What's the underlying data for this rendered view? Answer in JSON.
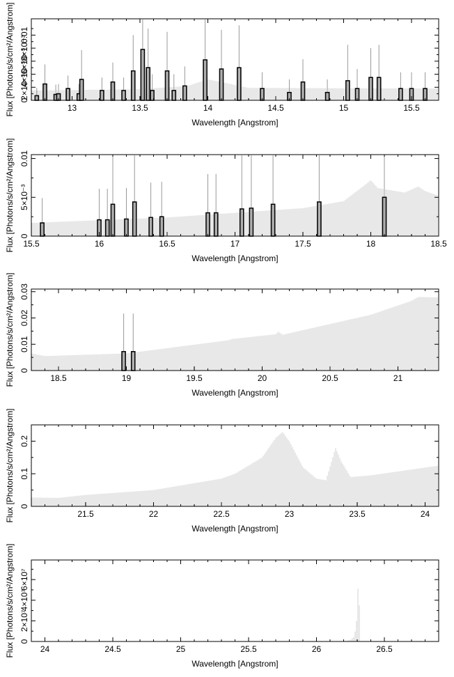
{
  "chart_data": [
    {
      "type": "bar",
      "xlabel": "Wavelength [Angstrom]",
      "ylabel": "Flux [Photons/s/cm²/Angstrom]",
      "xlim": [
        12.7,
        15.7
      ],
      "ylim": [
        0,
        0.0125
      ],
      "xticks": [
        13,
        13.5,
        14,
        14.5,
        15,
        15.5
      ],
      "yticks": [
        {
          "v": 0,
          "label": "0"
        },
        {
          "v": 0.002,
          "label": "2×10⁻³"
        },
        {
          "v": 0.004,
          "label": "4×10⁻³"
        },
        {
          "v": 0.006,
          "label": "6×10⁻³"
        },
        {
          "v": 0.008,
          "label": "8×10⁻³"
        },
        {
          "v": 0.01,
          "label": "0.01"
        }
      ],
      "continuum": [
        [
          12.7,
          0.0015
        ],
        [
          13.5,
          0.0017
        ],
        [
          13.85,
          0.0022
        ],
        [
          14.0,
          0.0032
        ],
        [
          14.1,
          0.0028
        ],
        [
          14.3,
          0.0019
        ],
        [
          15.7,
          0.0018
        ]
      ],
      "bins": [
        {
          "x": 12.74,
          "y": 0.0007,
          "err": 0.0012
        },
        {
          "x": 12.8,
          "y": 0.0025,
          "err": 0.003
        },
        {
          "x": 12.88,
          "y": 0.0009,
          "err": 0.0015
        },
        {
          "x": 12.9,
          "y": 0.001,
          "err": 0.0015
        },
        {
          "x": 12.97,
          "y": 0.0018,
          "err": 0.002
        },
        {
          "x": 13.05,
          "y": 0.001,
          "err": 0.0015
        },
        {
          "x": 13.07,
          "y": 0.0032,
          "err": 0.0045
        },
        {
          "x": 13.22,
          "y": 0.0015,
          "err": 0.002
        },
        {
          "x": 13.3,
          "y": 0.0028,
          "err": 0.003
        },
        {
          "x": 13.38,
          "y": 0.0015,
          "err": 0.002
        },
        {
          "x": 13.45,
          "y": 0.0045,
          "err": 0.0055
        },
        {
          "x": 13.52,
          "y": 0.0078,
          "err": 0.009
        },
        {
          "x": 13.56,
          "y": 0.005,
          "err": 0.006
        },
        {
          "x": 13.59,
          "y": 0.0015,
          "err": 0.0025
        },
        {
          "x": 13.7,
          "y": 0.0045,
          "err": 0.006
        },
        {
          "x": 13.75,
          "y": 0.0015,
          "err": 0.0025
        },
        {
          "x": 13.83,
          "y": 0.0022,
          "err": 0.003
        },
        {
          "x": 13.98,
          "y": 0.0062,
          "err": 0.01
        },
        {
          "x": 14.1,
          "y": 0.0048,
          "err": 0.006
        },
        {
          "x": 14.23,
          "y": 0.005,
          "err": 0.0065
        },
        {
          "x": 14.4,
          "y": 0.0018,
          "err": 0.0025
        },
        {
          "x": 14.6,
          "y": 0.0012,
          "err": 0.002
        },
        {
          "x": 14.7,
          "y": 0.0028,
          "err": 0.0035
        },
        {
          "x": 14.88,
          "y": 0.0012,
          "err": 0.002
        },
        {
          "x": 15.03,
          "y": 0.003,
          "err": 0.0055
        },
        {
          "x": 15.1,
          "y": 0.0018,
          "err": 0.003
        },
        {
          "x": 15.2,
          "y": 0.0035,
          "err": 0.0045
        },
        {
          "x": 15.26,
          "y": 0.0035,
          "err": 0.005
        },
        {
          "x": 15.42,
          "y": 0.0018,
          "err": 0.0025
        },
        {
          "x": 15.5,
          "y": 0.0018,
          "err": 0.0025
        },
        {
          "x": 15.6,
          "y": 0.0018,
          "err": 0.0025
        }
      ]
    },
    {
      "type": "bar",
      "xlabel": "Wavelength [Angstrom]",
      "ylabel": "Flux [Photons/s/cm²/Angstrom]",
      "xlim": [
        15.5,
        18.5
      ],
      "ylim": [
        0,
        0.0105
      ],
      "xticks": [
        15.5,
        16,
        16.5,
        17,
        17.5,
        18,
        18.5
      ],
      "yticks": [
        {
          "v": 0,
          "label": "0"
        },
        {
          "v": 0.005,
          "label": "5×10⁻³"
        },
        {
          "v": 0.01,
          "label": "0.01"
        }
      ],
      "continuum": [
        [
          15.5,
          0.0017
        ],
        [
          16.5,
          0.0024
        ],
        [
          17.5,
          0.0036
        ],
        [
          17.8,
          0.0045
        ],
        [
          17.95,
          0.0065
        ],
        [
          18.0,
          0.0072
        ],
        [
          18.05,
          0.0062
        ],
        [
          18.25,
          0.0056
        ],
        [
          18.35,
          0.0064
        ],
        [
          18.4,
          0.0058
        ],
        [
          18.5,
          0.0052
        ]
      ],
      "bins": [
        {
          "x": 15.58,
          "y": 0.0017,
          "err": 0.0032
        },
        {
          "x": 16.0,
          "y": 0.0021,
          "err": 0.004
        },
        {
          "x": 16.06,
          "y": 0.0021,
          "err": 0.004
        },
        {
          "x": 16.1,
          "y": 0.0041,
          "err": 0.0075
        },
        {
          "x": 16.2,
          "y": 0.0022,
          "err": 0.004
        },
        {
          "x": 16.26,
          "y": 0.0044,
          "err": 0.0077
        },
        {
          "x": 16.38,
          "y": 0.0024,
          "err": 0.0045
        },
        {
          "x": 16.46,
          "y": 0.0025,
          "err": 0.0045
        },
        {
          "x": 16.8,
          "y": 0.003,
          "err": 0.005
        },
        {
          "x": 16.86,
          "y": 0.003,
          "err": 0.005
        },
        {
          "x": 17.05,
          "y": 0.0035,
          "err": 0.007
        },
        {
          "x": 17.12,
          "y": 0.0036,
          "err": 0.007
        },
        {
          "x": 17.28,
          "y": 0.0041,
          "err": 0.0085
        },
        {
          "x": 17.62,
          "y": 0.0044,
          "err": 0.009
        },
        {
          "x": 18.1,
          "y": 0.005,
          "err": 0.01
        }
      ]
    },
    {
      "type": "bar",
      "xlabel": "Wavelength [Angstrom]",
      "ylabel": "Flux [Photons/s/cm²/Angstrom]",
      "xlim": [
        18.3,
        21.3
      ],
      "ylim": [
        0,
        0.031
      ],
      "xticks": [
        18.5,
        19,
        19.5,
        20,
        20.5,
        21
      ],
      "yticks": [
        {
          "v": 0,
          "label": "0"
        },
        {
          "v": 0.01,
          "label": "0.01"
        },
        {
          "v": 0.02,
          "label": "0.02"
        },
        {
          "v": 0.03,
          "label": "0.03"
        }
      ],
      "continuum": [
        [
          18.3,
          0.0065
        ],
        [
          18.4,
          0.0055
        ],
        [
          19.0,
          0.0065
        ],
        [
          19.75,
          0.0115
        ],
        [
          19.78,
          0.012
        ],
        [
          20.1,
          0.0138
        ],
        [
          20.12,
          0.0148
        ],
        [
          20.15,
          0.0136
        ],
        [
          20.8,
          0.0212
        ],
        [
          21.1,
          0.0265
        ],
        [
          21.15,
          0.028
        ],
        [
          21.3,
          0.0278
        ]
      ],
      "bins": [
        {
          "x": 18.98,
          "y": 0.0072,
          "err": 0.0145
        },
        {
          "x": 19.05,
          "y": 0.0072,
          "err": 0.0145
        }
      ]
    },
    {
      "type": "bar",
      "xlabel": "Wavelength [Angstrom]",
      "ylabel": "Flux [Photons/s/cm²/Angstrom]",
      "xlim": [
        21.1,
        24.1
      ],
      "ylim": [
        0,
        0.25
      ],
      "xticks": [
        21.5,
        22,
        22.5,
        23,
        23.5,
        24
      ],
      "yticks": [
        {
          "v": 0,
          "label": "0"
        },
        {
          "v": 0.1,
          "label": "0.1"
        },
        {
          "v": 0.2,
          "label": "0.2"
        }
      ],
      "continuum": [
        [
          21.1,
          0.027
        ],
        [
          21.3,
          0.026
        ],
        [
          21.5,
          0.035
        ],
        [
          22.0,
          0.05
        ],
        [
          22.5,
          0.085
        ],
        [
          22.6,
          0.1
        ],
        [
          22.8,
          0.15
        ],
        [
          22.9,
          0.21
        ],
        [
          22.95,
          0.228
        ],
        [
          23.0,
          0.2
        ],
        [
          23.1,
          0.12
        ],
        [
          23.2,
          0.085
        ],
        [
          23.27,
          0.08
        ],
        [
          23.32,
          0.15
        ],
        [
          23.34,
          0.18
        ],
        [
          23.38,
          0.14
        ],
        [
          23.45,
          0.09
        ],
        [
          23.6,
          0.095
        ],
        [
          24.1,
          0.125
        ]
      ],
      "bins": []
    },
    {
      "type": "bar",
      "xlabel": "Wavelength [Angstrom]",
      "ylabel": "Flux [Photons/s/cm²/Angstrom]",
      "xlim": [
        23.9,
        26.9
      ],
      "ylim": [
        0,
        79000000
      ],
      "xticks": [
        24,
        24.5,
        25,
        25.5,
        26,
        26.5
      ],
      "yticks": [
        {
          "v": 0,
          "label": "0"
        },
        {
          "v": 20000000,
          "label": "2×10⁷"
        },
        {
          "v": 40000000,
          "label": "4×10⁷"
        },
        {
          "v": 60000000,
          "label": "6×10⁷"
        }
      ],
      "continuum": [
        [
          23.9,
          0
        ],
        [
          26.2,
          0
        ],
        [
          26.25,
          1500000
        ],
        [
          26.28,
          5000000
        ],
        [
          26.3,
          25000000
        ],
        [
          26.31,
          76000000
        ],
        [
          26.32,
          0
        ],
        [
          26.9,
          0
        ]
      ],
      "bins": []
    }
  ]
}
